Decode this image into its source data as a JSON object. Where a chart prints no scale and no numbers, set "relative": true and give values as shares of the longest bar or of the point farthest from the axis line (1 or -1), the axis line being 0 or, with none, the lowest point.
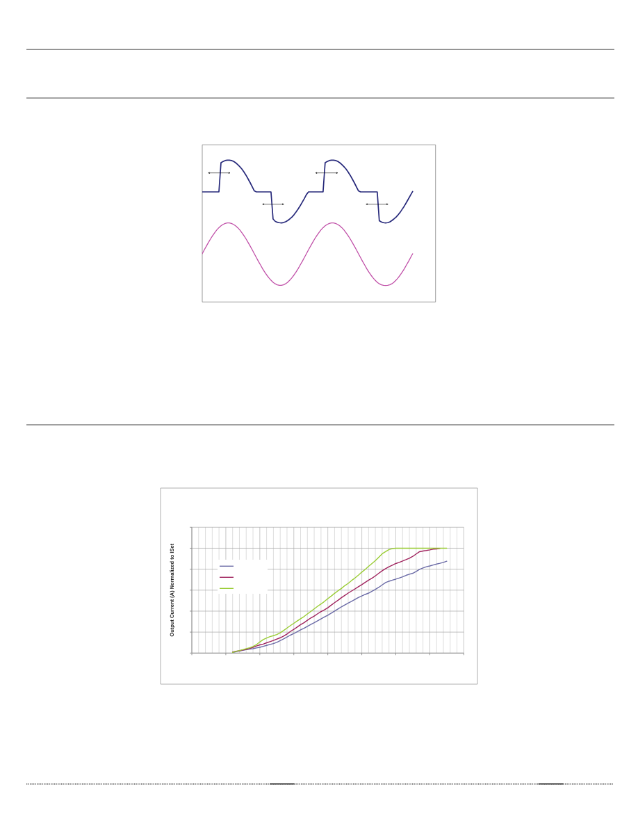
{
  "chart_data": [
    {
      "type": "line",
      "relative": true,
      "categories": [
        null,
        null,
        null,
        null,
        null,
        null,
        null,
        null,
        null,
        null,
        null,
        null,
        null,
        null,
        null,
        null,
        null,
        null,
        null,
        null,
        null,
        null,
        null,
        null,
        null,
        null,
        null,
        null,
        null,
        null,
        null,
        null,
        null,
        null,
        null,
        null,
        null,
        null,
        null,
        null,
        null,
        null,
        null,
        null,
        null,
        null,
        null,
        null,
        null,
        null,
        null,
        null,
        null,
        null,
        null,
        null,
        null,
        null,
        null,
        null,
        null,
        null,
        null,
        null,
        null,
        null,
        null,
        null,
        null,
        null,
        null,
        null,
        null,
        null,
        null,
        null,
        null,
        null,
        null,
        null,
        null,
        null,
        null,
        null,
        null,
        null,
        null,
        null,
        null,
        null,
        null,
        null,
        null,
        null,
        null,
        null,
        null,
        null,
        null,
        null,
        null,
        null,
        null,
        null,
        null,
        null,
        null,
        null,
        null,
        null,
        null,
        null,
        null
      ],
      "series": [
        {
          "color": "#26287a",
          "values": [
            0.776,
            0.776,
            0.776,
            0.776,
            0.776,
            0.776,
            0.776,
            0.776,
            0.776,
            0.982,
            0.99,
            0.997,
            1.0,
            1.0,
            0.997,
            0.992,
            0.982,
            0.969,
            0.954,
            0.938,
            0.917,
            0.894,
            0.868,
            0.841,
            0.812,
            0.783,
            0.776,
            0.776,
            0.776,
            0.776,
            0.776,
            0.776,
            0.776,
            0.776,
            0.585,
            0.569,
            0.562,
            0.559,
            0.557,
            0.56,
            0.565,
            0.574,
            0.585,
            0.598,
            0.614,
            0.634,
            0.655,
            0.678,
            0.703,
            0.729,
            0.757,
            0.776,
            0.776,
            0.776,
            0.776,
            0.776,
            0.776,
            0.776,
            0.776,
            0.982,
            0.99,
            0.997,
            1.0,
            1.0,
            0.997,
            0.992,
            0.982,
            0.969,
            0.954,
            0.938,
            0.917,
            0.894,
            0.868,
            0.841,
            0.812,
            0.783,
            0.776,
            0.776,
            0.776,
            0.776,
            0.776,
            0.776,
            0.776,
            0.776,
            0.776,
            0.572,
            0.564,
            0.559,
            0.557,
            0.559,
            0.564,
            0.574,
            0.585,
            0.598,
            0.614,
            0.632,
            0.654,
            0.676,
            0.701,
            0.727,
            0.753,
            0.779,
            null,
            null,
            null,
            null,
            null,
            null,
            null,
            null,
            null,
            null,
            null
          ]
        },
        {
          "color": "#c050a8",
          "values": [
            0.34,
            0.368,
            0.394,
            0.42,
            0.445,
            0.468,
            0.489,
            0.508,
            0.524,
            0.537,
            0.547,
            0.554,
            0.557,
            0.557,
            0.554,
            0.547,
            0.537,
            0.524,
            0.508,
            0.489,
            0.468,
            0.445,
            0.42,
            0.394,
            0.368,
            0.34,
            0.313,
            0.285,
            0.26,
            0.234,
            0.21,
            0.189,
            0.17,
            0.153,
            0.139,
            0.128,
            0.121,
            0.117,
            0.117,
            0.121,
            0.128,
            0.139,
            0.153,
            0.17,
            0.189,
            0.21,
            0.234,
            0.26,
            0.285,
            0.313,
            0.34,
            0.368,
            0.394,
            0.42,
            0.445,
            0.468,
            0.489,
            0.508,
            0.524,
            0.537,
            0.547,
            0.554,
            0.557,
            0.557,
            0.554,
            0.547,
            0.537,
            0.524,
            0.508,
            0.489,
            0.468,
            0.445,
            0.42,
            0.394,
            0.368,
            0.34,
            0.313,
            0.285,
            0.26,
            0.234,
            0.21,
            0.189,
            0.17,
            0.153,
            0.139,
            0.128,
            0.121,
            0.117,
            0.116,
            0.117,
            0.121,
            0.128,
            0.139,
            0.153,
            0.17,
            0.189,
            0.21,
            0.234,
            0.26,
            0.285,
            0.313,
            0.34,
            null,
            null,
            null,
            null,
            null,
            null,
            null,
            null,
            null,
            null,
            null
          ]
        }
      ]
    },
    {
      "type": "line",
      "relative": true,
      "ylabel": "Output Current (A) Normalized to ISet",
      "categories": [
        null,
        null,
        null,
        null,
        null,
        null,
        null,
        null,
        null,
        null,
        null,
        null,
        null,
        null,
        null,
        null,
        null,
        null,
        null,
        null,
        null,
        null,
        null,
        null,
        null,
        null,
        null,
        null,
        null,
        null,
        null,
        null,
        null,
        null,
        null,
        null,
        null,
        null,
        null,
        null,
        null,
        null,
        null,
        null,
        null,
        null,
        null,
        null,
        null,
        null,
        null,
        null,
        null,
        null,
        null,
        null,
        null,
        null,
        null,
        null,
        null,
        null,
        null,
        null,
        null,
        null,
        null,
        null,
        null,
        null,
        null,
        null,
        null,
        null,
        null,
        null,
        null,
        null,
        null,
        null,
        null
      ],
      "series": [
        {
          "color": "#6a6aa6",
          "values": [
            null,
            null,
            null,
            null,
            null,
            null,
            null,
            null,
            null,
            null,
            null,
            null,
            0.004,
            0.013,
            0.02,
            0.027,
            0.033,
            0.038,
            0.042,
            0.049,
            0.055,
            0.064,
            0.073,
            0.082,
            0.091,
            0.102,
            0.118,
            0.135,
            0.153,
            0.171,
            0.186,
            0.204,
            0.222,
            0.237,
            0.255,
            0.273,
            0.29,
            0.308,
            0.326,
            0.344,
            0.361,
            0.381,
            0.401,
            0.421,
            0.441,
            0.459,
            0.477,
            0.494,
            0.512,
            0.53,
            0.545,
            0.559,
            0.572,
            0.59,
            0.608,
            0.627,
            0.65,
            0.672,
            0.685,
            0.696,
            0.705,
            0.716,
            0.727,
            0.741,
            0.752,
            0.761,
            0.778,
            0.798,
            0.812,
            0.823,
            0.831,
            0.84,
            0.849,
            0.856,
            0.865,
            0.876,
            null,
            null,
            null,
            null,
            null
          ]
        },
        {
          "color": "#a0245e",
          "values": [
            null,
            null,
            null,
            null,
            null,
            null,
            null,
            null,
            null,
            null,
            null,
            null,
            0.011,
            0.018,
            0.022,
            0.029,
            0.035,
            0.044,
            0.055,
            0.067,
            0.078,
            0.086,
            0.098,
            0.109,
            0.12,
            0.133,
            0.146,
            0.162,
            0.182,
            0.206,
            0.226,
            0.248,
            0.271,
            0.29,
            0.313,
            0.335,
            0.353,
            0.375,
            0.395,
            0.412,
            0.432,
            0.457,
            0.481,
            0.503,
            0.528,
            0.55,
            0.572,
            0.592,
            0.612,
            0.632,
            0.652,
            0.674,
            0.696,
            0.714,
            0.736,
            0.761,
            0.785,
            0.805,
            0.823,
            0.838,
            0.854,
            0.865,
            0.878,
            0.891,
            0.905,
            0.922,
            0.945,
            0.967,
            0.973,
            0.978,
            0.984,
            0.991,
            0.993,
            0.998,
            null,
            null,
            null,
            null,
            null,
            null,
            null
          ]
        },
        {
          "color": "#99cc33",
          "values": [
            null,
            null,
            null,
            null,
            null,
            null,
            null,
            null,
            null,
            null,
            null,
            null,
            0.007,
            0.016,
            0.024,
            0.033,
            0.042,
            0.051,
            0.062,
            0.08,
            0.106,
            0.129,
            0.144,
            0.157,
            0.166,
            0.177,
            0.193,
            0.215,
            0.239,
            0.262,
            0.284,
            0.306,
            0.328,
            0.348,
            0.373,
            0.397,
            0.421,
            0.446,
            0.468,
            0.492,
            0.519,
            0.543,
            0.57,
            0.594,
            0.616,
            0.643,
            0.665,
            0.692,
            0.716,
            0.743,
            0.772,
            0.798,
            0.827,
            0.854,
            0.882,
            0.914,
            0.947,
            0.967,
            0.987,
            0.996,
            1.0,
            1.0,
            1.0,
            1.0,
            1.0,
            1.0,
            1.0,
            1.0,
            1.0,
            1.0,
            1.0,
            1.0,
            1.0,
            1.0,
            1.0,
            1.0,
            null,
            null,
            null,
            null,
            null
          ]
        }
      ],
      "grid": true
    }
  ]
}
